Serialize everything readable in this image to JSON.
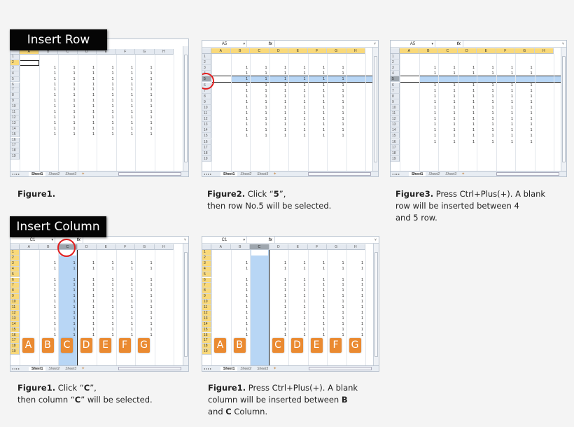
{
  "sections": {
    "insert_row": {
      "banner": "Insert Row"
    },
    "insert_column": {
      "banner": "Insert Column"
    }
  },
  "panels": [
    {
      "id": "row-fig1",
      "name_box": "",
      "columns": [
        "A",
        "B",
        "C",
        "D",
        "E",
        "F",
        "G",
        "H"
      ],
      "rows": [
        "1",
        "2",
        "3",
        "4",
        "5",
        "6",
        "7",
        "8",
        "9",
        "10",
        "11",
        "12",
        "13",
        "14",
        "15",
        "16",
        "17",
        "18",
        "19"
      ],
      "data_rows": [
        "3",
        "4",
        "5",
        "6",
        "7",
        "8",
        "9",
        "10",
        "11",
        "12",
        "13",
        "14",
        "15"
      ],
      "cell_value": "1",
      "active_cell": "A2",
      "tabs": [
        "Sheet1",
        "Sheet2",
        "Sheet3"
      ]
    },
    {
      "id": "row-fig2",
      "name_box": "A5",
      "columns": [
        "A",
        "B",
        "C",
        "D",
        "E",
        "F",
        "G",
        "H"
      ],
      "rows": [
        "1",
        "2",
        "3",
        "4",
        "5",
        "6",
        "7",
        "8",
        "9",
        "10",
        "11",
        "12",
        "13",
        "14",
        "15",
        "16",
        "17",
        "18",
        "19"
      ],
      "data_rows": [
        "3",
        "4",
        "5",
        "6",
        "7",
        "8",
        "9",
        "10",
        "11",
        "12",
        "13",
        "14",
        "15"
      ],
      "cell_value": "1",
      "selected_row": "5",
      "tabs": [
        "Sheet1",
        "Sheet2",
        "Sheet3"
      ]
    },
    {
      "id": "row-fig3",
      "name_box": "A5",
      "columns": [
        "A",
        "B",
        "C",
        "D",
        "E",
        "F",
        "G",
        "H"
      ],
      "rows": [
        "1",
        "2",
        "3",
        "4",
        "5",
        "6",
        "7",
        "8",
        "9",
        "10",
        "11",
        "12",
        "13",
        "14",
        "15",
        "16",
        "17",
        "18",
        "19"
      ],
      "data_rows": [
        "3",
        "4",
        "6",
        "7",
        "8",
        "9",
        "10",
        "11",
        "12",
        "13",
        "14",
        "15",
        "16"
      ],
      "cell_value": "1",
      "selected_row": "5",
      "tabs": [
        "Sheet1",
        "Sheet2",
        "Sheet3"
      ]
    },
    {
      "id": "col-fig1",
      "name_box": "C1",
      "columns": [
        "A",
        "B",
        "C",
        "D",
        "E",
        "F",
        "G",
        "H"
      ],
      "rows": [
        "1",
        "2",
        "3",
        "4",
        "5",
        "6",
        "7",
        "8",
        "9",
        "10",
        "11",
        "12",
        "13",
        "14",
        "15",
        "16",
        "17",
        "18",
        "19"
      ],
      "data_rows": [
        "3",
        "4",
        "6",
        "7",
        "8",
        "9",
        "10",
        "11",
        "12",
        "13",
        "14",
        "15",
        "16"
      ],
      "cell_value": "1",
      "selected_column": "C",
      "labels": [
        "A",
        "B",
        "C",
        "D",
        "E",
        "F",
        "G"
      ],
      "tabs": [
        "Sheet1",
        "Sheet2",
        "Sheet3"
      ]
    },
    {
      "id": "col-fig2",
      "name_box": "C1",
      "columns": [
        "A",
        "B",
        "C",
        "D",
        "E",
        "F",
        "G",
        "H"
      ],
      "rows": [
        "1",
        "2",
        "3",
        "4",
        "5",
        "6",
        "7",
        "8",
        "9",
        "10",
        "11",
        "12",
        "13",
        "14",
        "15",
        "16",
        "17",
        "18",
        "19"
      ],
      "data_rows": [
        "3",
        "4",
        "6",
        "7",
        "8",
        "9",
        "10",
        "11",
        "12",
        "13",
        "14",
        "15",
        "16"
      ],
      "cell_value": "1",
      "selected_column": "C",
      "labels": [
        "A",
        "B",
        "C",
        "D",
        "E",
        "F",
        "G"
      ],
      "tabs": [
        "Sheet1",
        "Sheet2",
        "Sheet3"
      ]
    }
  ],
  "captions": {
    "row_fig1": {
      "title": "Figure1.",
      "text": ""
    },
    "row_fig2": {
      "title": "Figure2.",
      "t1": " Click “",
      "b1": "5",
      "t2": "”,",
      "line2": "then row No.5 will be selected."
    },
    "row_fig3": {
      "title": "Figure3.",
      "text": " Press Ctrl+Plus(+).  A blank",
      "line2": "row will be inserted between 4",
      "line3": "and 5 row."
    },
    "col_fig1": {
      "title": "Figure1.",
      "t1": " Click “",
      "b1": "C",
      "t2": "”,",
      "l2a": "then column “",
      "l2b": "C",
      "l2c": "” will be selected."
    },
    "col_fig2": {
      "title": "Figure1.",
      "text": " Press Ctrl+Plus(+).  A blank",
      "l2a": "column will be inserted between ",
      "l2b": "B",
      "l3a": "and ",
      "l3b": "C",
      "l3c": " Column."
    }
  },
  "colors": {
    "selection": "#b8d6f5",
    "badge": "#ea8a31",
    "circle": "#e21e1e",
    "header_highlight": "#f9d97a"
  }
}
